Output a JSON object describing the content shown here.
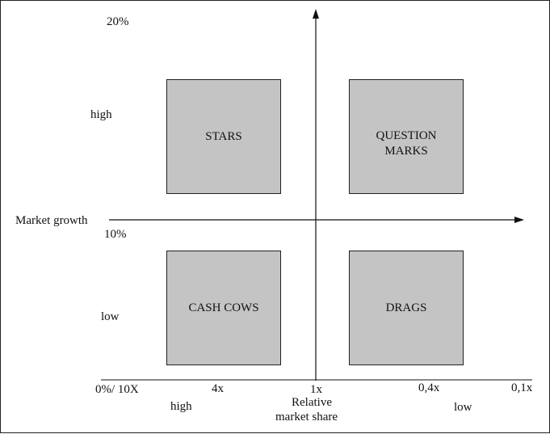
{
  "quadrants": {
    "stars": "STARS",
    "question_marks_line1": "QUESTION",
    "question_marks_line2": "MARKS",
    "cash_cows": "CASH COWS",
    "drags": "DRAGS"
  },
  "y_axis": {
    "top_value": "20%",
    "high": "high",
    "label": "Market growth",
    "mid_value": "10%",
    "low": "low"
  },
  "x_axis": {
    "ticks": [
      "0%/ 10X",
      "4x",
      "1x",
      "0,4x",
      "0,1x"
    ],
    "high": "high",
    "label_line1": "Relative",
    "label_line2": "market share",
    "low": "low"
  }
}
